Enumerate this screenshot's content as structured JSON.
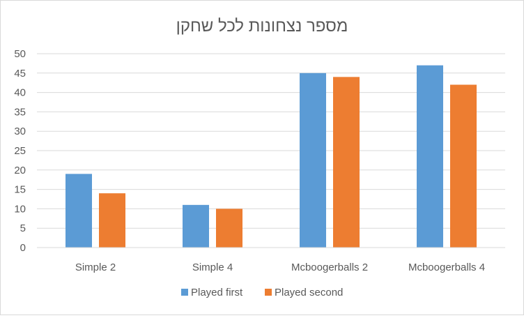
{
  "chart_data": {
    "type": "bar",
    "title": "מספר נצחונות לכל שחקן",
    "categories": [
      "Simple 2",
      "Simple 4",
      "Mcboogerballs 2",
      "Mcboogerballs 4"
    ],
    "series": [
      {
        "name": "Played first",
        "values": [
          19,
          11,
          45,
          47
        ],
        "color": "#5b9bd5"
      },
      {
        "name": "Played second",
        "values": [
          14,
          10,
          44,
          42
        ],
        "color": "#ed7d31"
      }
    ],
    "xlabel": "",
    "ylabel": "",
    "ylim": [
      0,
      50
    ],
    "yticks": [
      0,
      5,
      10,
      15,
      20,
      25,
      30,
      35,
      40,
      45,
      50
    ],
    "grid": true,
    "legend_position": "bottom"
  }
}
